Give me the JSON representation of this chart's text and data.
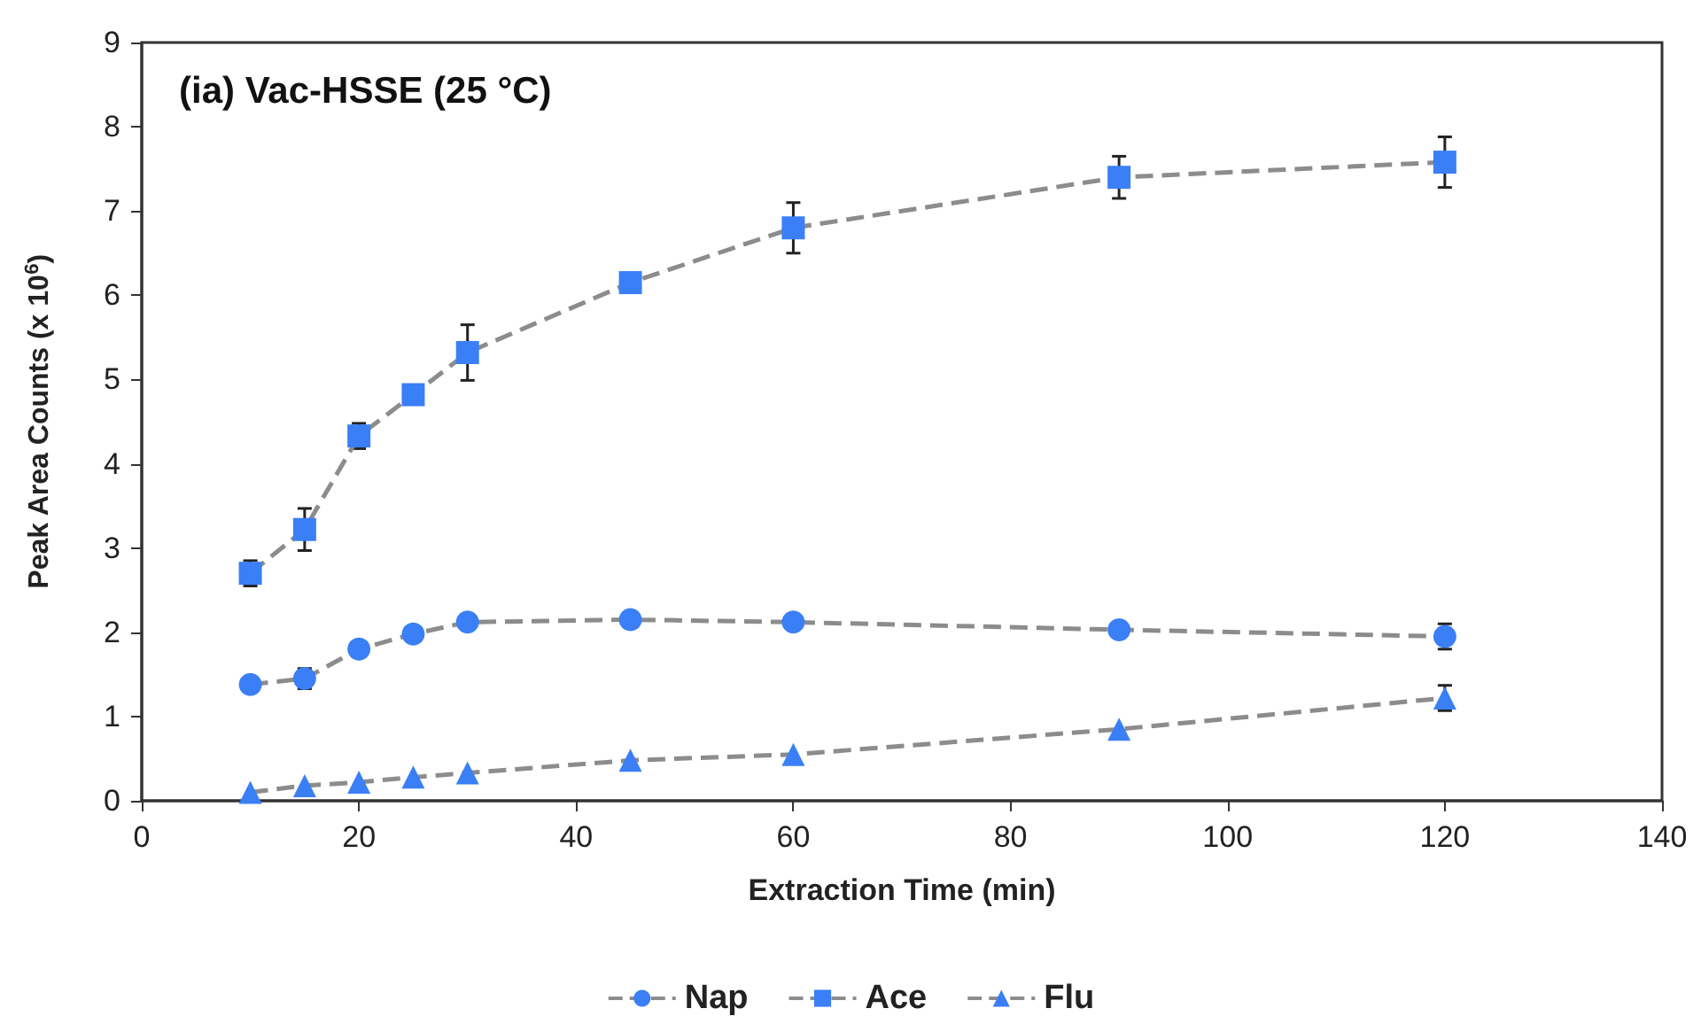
{
  "chart_data": {
    "type": "line",
    "title": "(ia) Vac-HSSE (25 °C)",
    "xlabel": "Extraction Time (min)",
    "ylabel": "Peak Area Counts (x 10$^{6}$)",
    "x": [
      10,
      15,
      20,
      25,
      30,
      45,
      60,
      90,
      120
    ],
    "series": [
      {
        "name": "Nap",
        "color": "#3a7ff6",
        "marker": "circle",
        "values": [
          1.38,
          1.45,
          1.8,
          1.98,
          2.12,
          2.15,
          2.12,
          2.03,
          1.95
        ],
        "errors": [
          null,
          0.12,
          null,
          null,
          null,
          null,
          null,
          null,
          0.15
        ]
      },
      {
        "name": "Ace",
        "color": "#3a7ff6",
        "marker": "square",
        "values": [
          2.7,
          3.22,
          4.33,
          4.82,
          5.32,
          6.15,
          6.8,
          7.4,
          7.58
        ],
        "errors": [
          0.15,
          0.25,
          0.15,
          null,
          0.33,
          null,
          0.3,
          0.25,
          0.3
        ]
      },
      {
        "name": "Flu",
        "color": "#3a7ff6",
        "marker": "triangle",
        "values": [
          0.1,
          0.18,
          0.22,
          0.28,
          0.33,
          0.48,
          0.55,
          0.85,
          1.22
        ],
        "errors": [
          null,
          null,
          null,
          null,
          null,
          null,
          null,
          null,
          0.15
        ]
      }
    ],
    "xlim": [
      0,
      140
    ],
    "xticks": [
      0,
      20,
      40,
      60,
      80,
      100,
      120,
      140
    ],
    "ylim": [
      0,
      9
    ],
    "yticks": [
      0,
      1,
      2,
      3,
      4,
      5,
      6,
      7,
      8,
      9
    ],
    "grid": false,
    "legend": "bottom",
    "line_style": "dashed"
  }
}
